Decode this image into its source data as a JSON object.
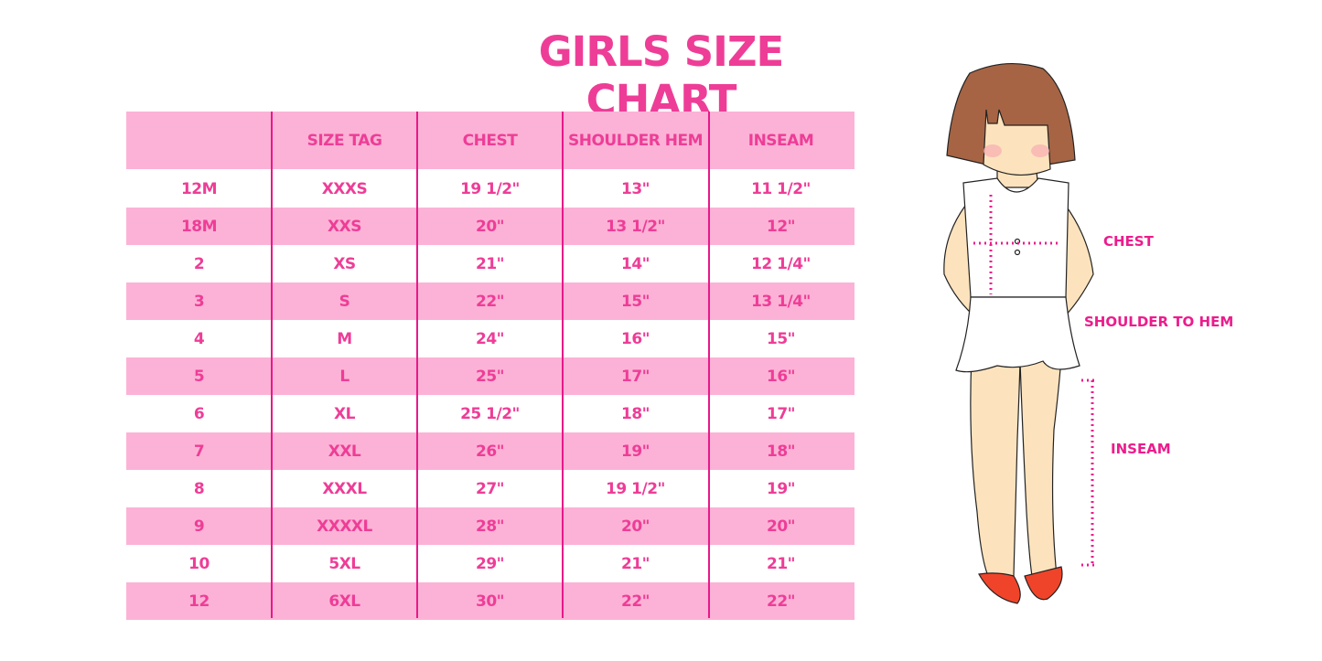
{
  "title": "GIRLS SIZE CHART",
  "table": {
    "headers": [
      "",
      "SIZE TAG",
      "CHEST",
      "SHOULDER HEM",
      "INSEAM"
    ],
    "rows": [
      [
        "12M",
        "XXXS",
        "19 1/2\"",
        "13\"",
        "11 1/2\""
      ],
      [
        "18M",
        "XXS",
        "20\"",
        "13 1/2\"",
        "12\""
      ],
      [
        "2",
        "XS",
        "21\"",
        "14\"",
        "12 1/4\""
      ],
      [
        "3",
        "S",
        "22\"",
        "15\"",
        "13 1/4\""
      ],
      [
        "4",
        "M",
        "24\"",
        "16\"",
        "15\""
      ],
      [
        "5",
        "L",
        "25\"",
        "17\"",
        "16\""
      ],
      [
        "6",
        "XL",
        "25 1/2\"",
        "18\"",
        "17\""
      ],
      [
        "7",
        "XXL",
        "26\"",
        "19\"",
        "18\""
      ],
      [
        "8",
        "XXXL",
        "27\"",
        "19 1/2\"",
        "19\""
      ],
      [
        "9",
        "XXXXL",
        "28\"",
        "20\"",
        "20\""
      ],
      [
        "10",
        "5XL",
        "29\"",
        "21\"",
        "21\""
      ],
      [
        "12",
        "6XL",
        "30\"",
        "22\"",
        "22\""
      ]
    ]
  },
  "illustration": {
    "labels": {
      "chest": "CHEST",
      "shoulder_to_hem": "SHOULDER TO HEM",
      "inseam": "INSEAM"
    }
  },
  "colors": {
    "accent": "#ee3d97",
    "stripe": "#fcb2d6",
    "divider": "#e8188a"
  }
}
